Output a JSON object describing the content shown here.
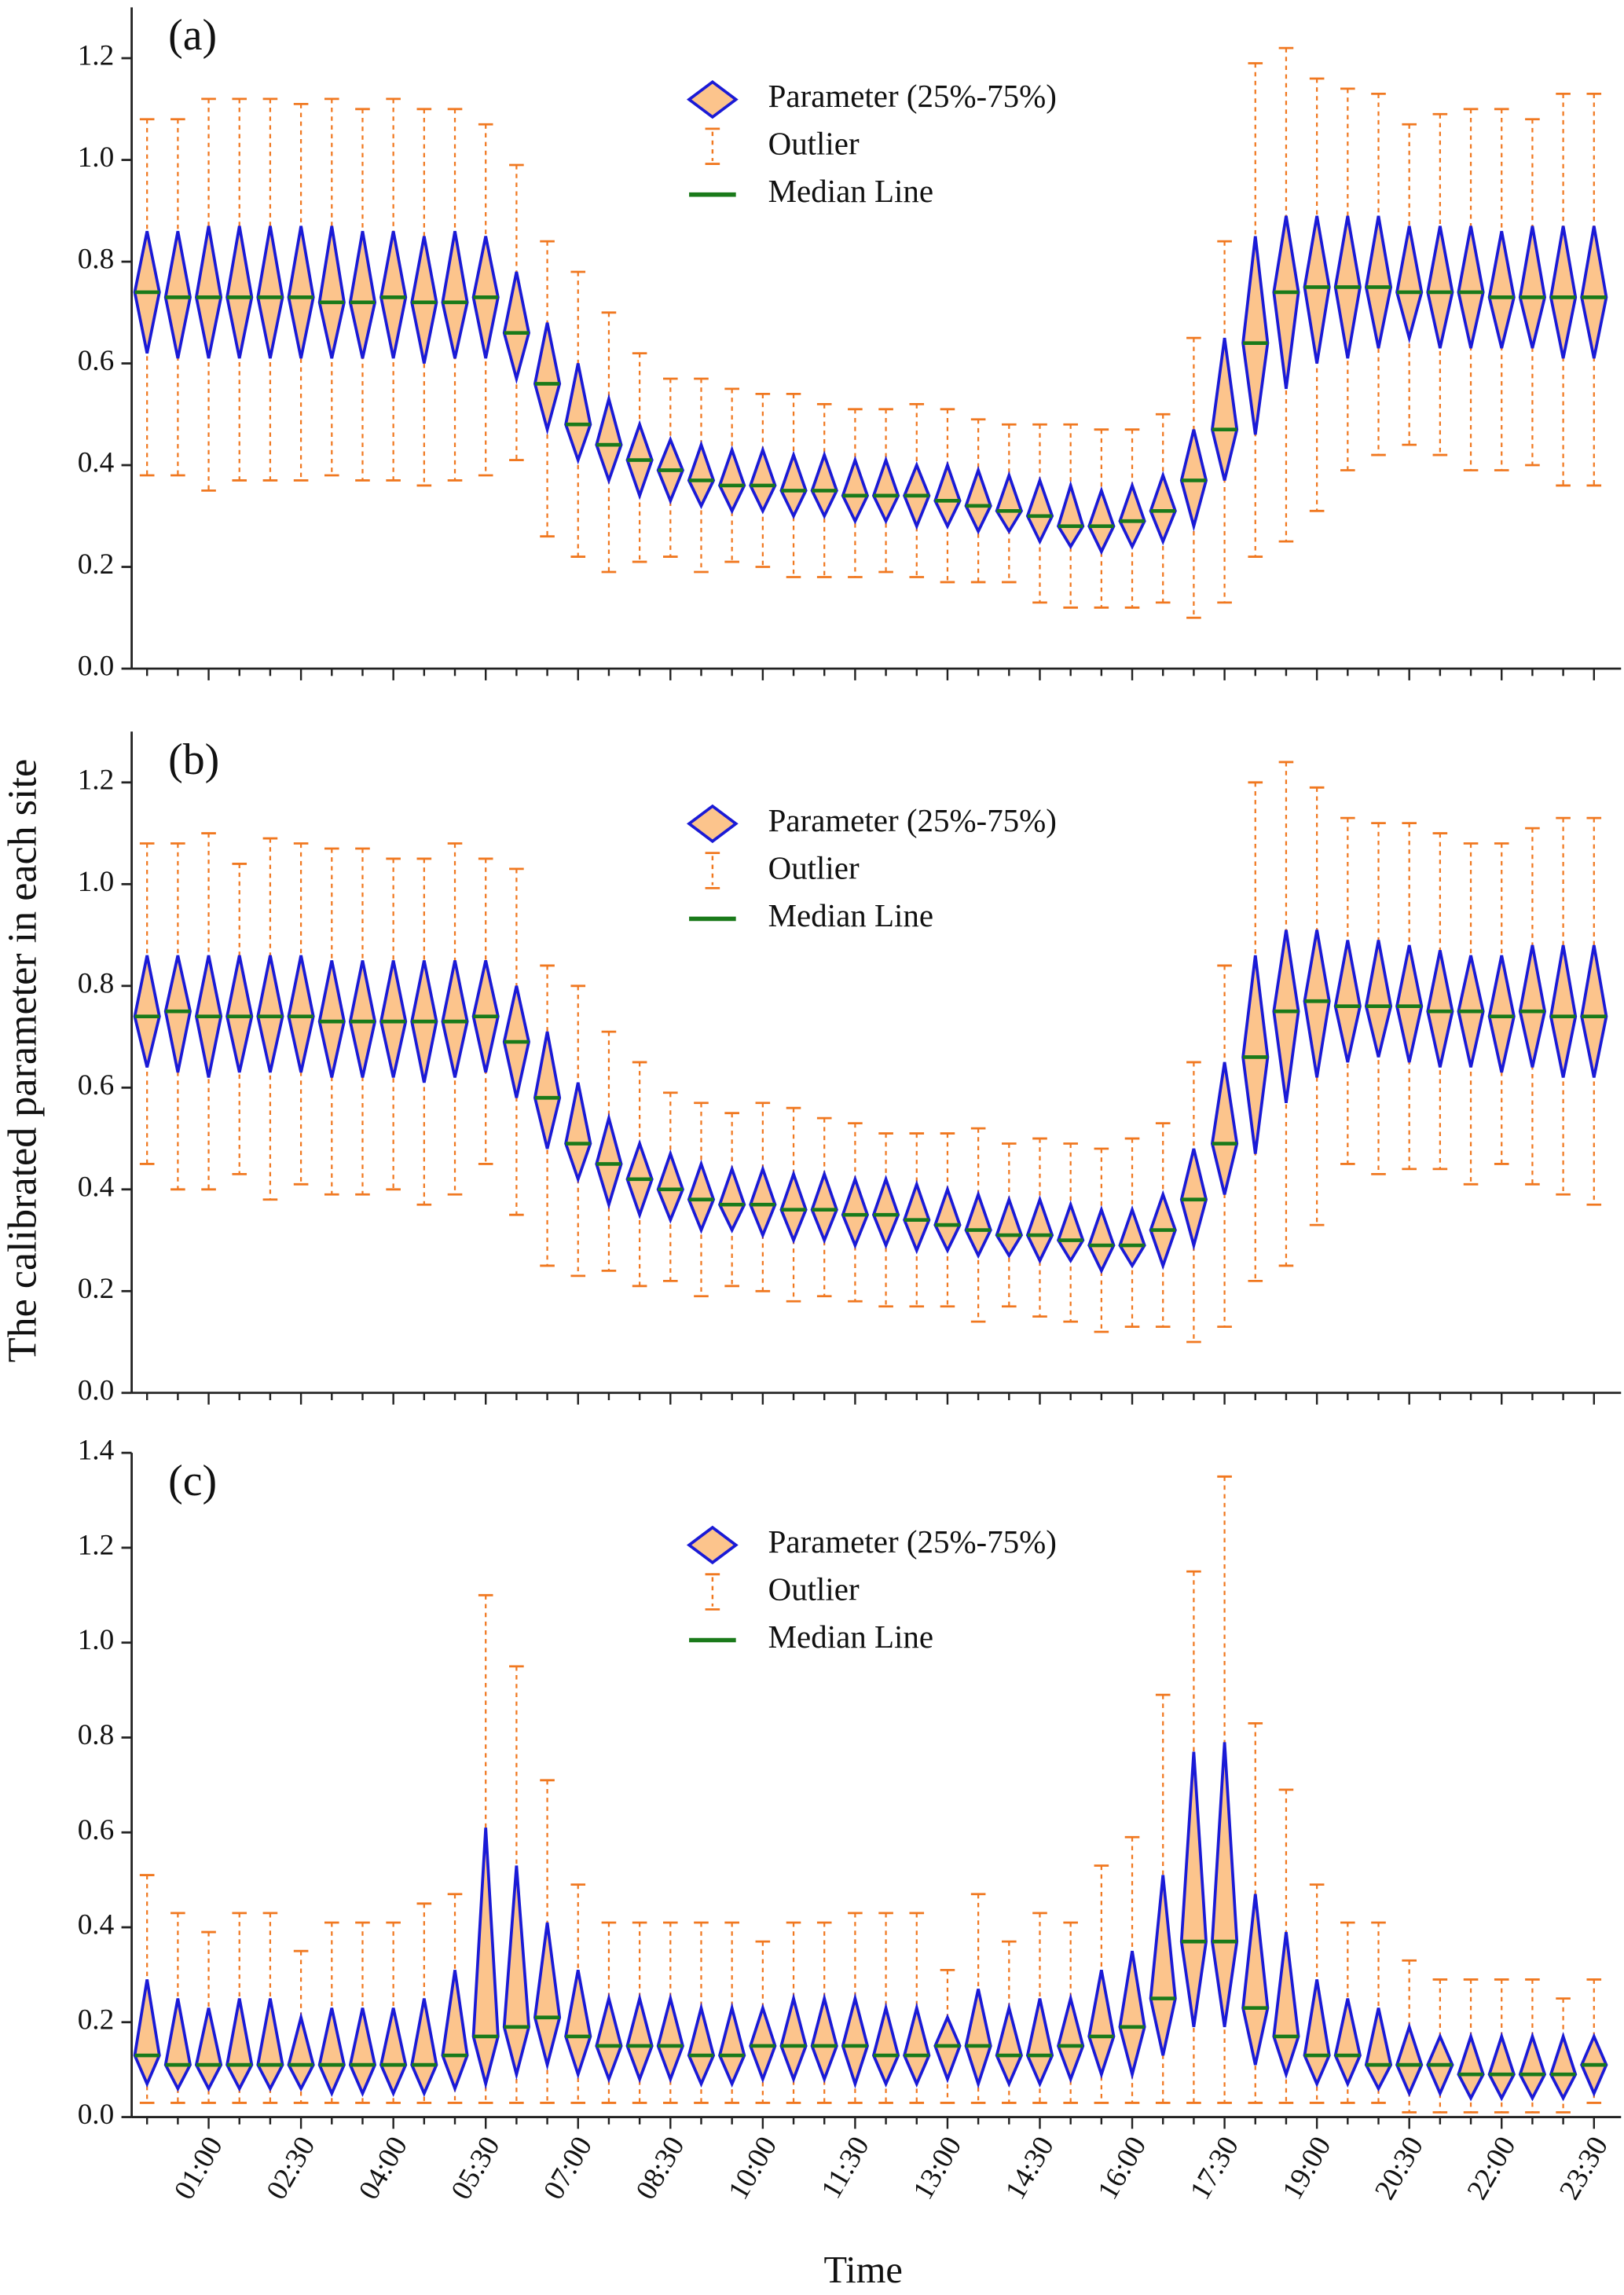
{
  "ylabel": "The calibrated parameter in each site",
  "xlabel": "Time",
  "chart_data": [
    {
      "type": "box",
      "panel": "(a)",
      "legend": [
        "Parameter (25%-75%)",
        "Outlier",
        "Median Line"
      ],
      "fill": "#fcc48c",
      "stroke": "#1a1ad6",
      "median_color": "#1a7a1a",
      "whisker_color": "#f07820",
      "ylim": [
        0,
        1.3
      ],
      "yticks": [
        {
          "value": 0,
          "label": "0.0"
        },
        0.2,
        0.4,
        0.6,
        0.8,
        {
          "value": 1,
          "label": "1.0"
        },
        1.2
      ],
      "whisker_high": [
        1.08,
        1.08,
        1.12,
        1.12,
        1.12,
        1.11,
        1.12,
        1.1,
        1.12,
        1.1,
        1.1,
        1.07,
        0.99,
        0.84,
        0.78,
        0.7,
        0.62,
        0.57,
        0.57,
        0.55,
        0.54,
        0.54,
        0.52,
        0.51,
        0.51,
        0.52,
        0.51,
        0.49,
        0.48,
        0.48,
        0.48,
        0.47,
        0.47,
        0.5,
        0.65,
        0.84,
        1.19,
        1.22,
        1.16,
        1.14,
        1.13,
        1.07,
        1.09,
        1.1,
        1.1,
        1.08,
        1.13,
        1.13
      ],
      "q3": [
        0.86,
        0.86,
        0.87,
        0.87,
        0.87,
        0.87,
        0.87,
        0.86,
        0.86,
        0.85,
        0.86,
        0.85,
        0.78,
        0.68,
        0.6,
        0.53,
        0.48,
        0.45,
        0.44,
        0.43,
        0.43,
        0.42,
        0.42,
        0.41,
        0.41,
        0.4,
        0.4,
        0.39,
        0.38,
        0.37,
        0.36,
        0.35,
        0.36,
        0.38,
        0.47,
        0.65,
        0.85,
        0.89,
        0.89,
        0.89,
        0.89,
        0.87,
        0.87,
        0.87,
        0.86,
        0.87,
        0.87,
        0.87
      ],
      "median": [
        0.74,
        0.73,
        0.73,
        0.73,
        0.73,
        0.73,
        0.72,
        0.72,
        0.73,
        0.72,
        0.72,
        0.73,
        0.66,
        0.56,
        0.48,
        0.44,
        0.41,
        0.39,
        0.37,
        0.36,
        0.36,
        0.35,
        0.35,
        0.34,
        0.34,
        0.34,
        0.33,
        0.32,
        0.31,
        0.3,
        0.28,
        0.28,
        0.29,
        0.31,
        0.37,
        0.47,
        0.64,
        0.74,
        0.75,
        0.75,
        0.75,
        0.74,
        0.74,
        0.74,
        0.73,
        0.73,
        0.73,
        0.73
      ],
      "q1": [
        0.62,
        0.61,
        0.61,
        0.61,
        0.61,
        0.61,
        0.61,
        0.61,
        0.61,
        0.6,
        0.61,
        0.61,
        0.57,
        0.47,
        0.41,
        0.37,
        0.34,
        0.33,
        0.32,
        0.31,
        0.31,
        0.3,
        0.3,
        0.29,
        0.29,
        0.28,
        0.28,
        0.27,
        0.27,
        0.25,
        0.24,
        0.23,
        0.24,
        0.25,
        0.28,
        0.37,
        0.46,
        0.55,
        0.6,
        0.61,
        0.63,
        0.65,
        0.63,
        0.63,
        0.63,
        0.63,
        0.61,
        0.61
      ],
      "whisker_low": [
        0.38,
        0.38,
        0.35,
        0.37,
        0.37,
        0.37,
        0.38,
        0.37,
        0.37,
        0.36,
        0.37,
        0.38,
        0.41,
        0.26,
        0.22,
        0.19,
        0.21,
        0.22,
        0.19,
        0.21,
        0.2,
        0.18,
        0.18,
        0.18,
        0.19,
        0.18,
        0.17,
        0.17,
        0.17,
        0.13,
        0.12,
        0.12,
        0.12,
        0.13,
        0.1,
        0.13,
        0.22,
        0.25,
        0.31,
        0.39,
        0.42,
        0.44,
        0.42,
        0.39,
        0.39,
        0.4,
        0.36,
        0.36
      ]
    },
    {
      "type": "box",
      "panel": "(b)",
      "legend": [
        "Parameter (25%-75%)",
        "Outlier",
        "Median Line"
      ],
      "fill": "#fcc48c",
      "stroke": "#1a1ad6",
      "median_color": "#1a7a1a",
      "whisker_color": "#f07820",
      "ylim": [
        0,
        1.3
      ],
      "yticks": [
        {
          "value": 0,
          "label": "0.0"
        },
        0.2,
        0.4,
        0.6,
        0.8,
        {
          "value": 1,
          "label": "1.0"
        },
        1.2
      ],
      "whisker_high": [
        1.08,
        1.08,
        1.1,
        1.04,
        1.09,
        1.08,
        1.07,
        1.07,
        1.05,
        1.05,
        1.08,
        1.05,
        1.03,
        0.84,
        0.8,
        0.71,
        0.65,
        0.59,
        0.57,
        0.55,
        0.57,
        0.56,
        0.54,
        0.53,
        0.51,
        0.51,
        0.51,
        0.52,
        0.49,
        0.5,
        0.49,
        0.48,
        0.5,
        0.53,
        0.65,
        0.84,
        1.2,
        1.24,
        1.19,
        1.13,
        1.12,
        1.12,
        1.1,
        1.08,
        1.08,
        1.11,
        1.13,
        1.13
      ],
      "q3": [
        0.86,
        0.86,
        0.86,
        0.86,
        0.86,
        0.86,
        0.85,
        0.85,
        0.85,
        0.85,
        0.85,
        0.85,
        0.8,
        0.71,
        0.61,
        0.54,
        0.49,
        0.47,
        0.45,
        0.44,
        0.44,
        0.43,
        0.43,
        0.42,
        0.42,
        0.41,
        0.4,
        0.39,
        0.38,
        0.38,
        0.37,
        0.36,
        0.36,
        0.39,
        0.48,
        0.65,
        0.86,
        0.91,
        0.91,
        0.89,
        0.89,
        0.88,
        0.87,
        0.86,
        0.86,
        0.88,
        0.88,
        0.88
      ],
      "median": [
        0.74,
        0.75,
        0.74,
        0.74,
        0.74,
        0.74,
        0.73,
        0.73,
        0.73,
        0.73,
        0.73,
        0.74,
        0.69,
        0.58,
        0.49,
        0.45,
        0.42,
        0.4,
        0.38,
        0.37,
        0.37,
        0.36,
        0.36,
        0.35,
        0.35,
        0.34,
        0.33,
        0.32,
        0.31,
        0.31,
        0.3,
        0.29,
        0.29,
        0.32,
        0.38,
        0.49,
        0.66,
        0.75,
        0.77,
        0.76,
        0.76,
        0.76,
        0.75,
        0.75,
        0.74,
        0.75,
        0.74,
        0.74
      ],
      "q1": [
        0.64,
        0.63,
        0.62,
        0.63,
        0.63,
        0.63,
        0.62,
        0.62,
        0.62,
        0.61,
        0.62,
        0.63,
        0.58,
        0.48,
        0.42,
        0.37,
        0.35,
        0.34,
        0.32,
        0.32,
        0.31,
        0.3,
        0.3,
        0.29,
        0.29,
        0.28,
        0.28,
        0.27,
        0.27,
        0.26,
        0.26,
        0.24,
        0.25,
        0.25,
        0.29,
        0.39,
        0.47,
        0.57,
        0.62,
        0.65,
        0.66,
        0.65,
        0.64,
        0.64,
        0.63,
        0.64,
        0.62,
        0.62
      ],
      "whisker_low": [
        0.45,
        0.4,
        0.4,
        0.43,
        0.38,
        0.41,
        0.39,
        0.39,
        0.4,
        0.37,
        0.39,
        0.45,
        0.35,
        0.25,
        0.23,
        0.24,
        0.21,
        0.22,
        0.19,
        0.21,
        0.2,
        0.18,
        0.19,
        0.18,
        0.17,
        0.17,
        0.17,
        0.14,
        0.17,
        0.15,
        0.14,
        0.12,
        0.13,
        0.13,
        0.1,
        0.13,
        0.22,
        0.25,
        0.33,
        0.45,
        0.43,
        0.44,
        0.44,
        0.41,
        0.45,
        0.41,
        0.39,
        0.37
      ]
    },
    {
      "type": "box",
      "panel": "(c)",
      "legend": [
        "Parameter (25%-75%)",
        "Outlier",
        "Median Line"
      ],
      "fill": "#fcc48c",
      "stroke": "#1a1ad6",
      "median_color": "#1a7a1a",
      "whisker_color": "#f07820",
      "categories": [
        null,
        null,
        "01:00",
        null,
        null,
        "02:30",
        null,
        null,
        "04:00",
        null,
        null,
        "05:30",
        null,
        null,
        "07:00",
        null,
        null,
        "08:30",
        null,
        null,
        "10:00",
        null,
        null,
        "11:30",
        null,
        null,
        "13:00",
        null,
        null,
        "14:30",
        null,
        null,
        "16:00",
        null,
        null,
        "17:30",
        null,
        null,
        "19:00",
        null,
        null,
        "20:30",
        null,
        null,
        "22:00",
        null,
        null,
        "23:30"
      ],
      "ylim": [
        0,
        1.4
      ],
      "yticks": [
        {
          "value": 0,
          "label": "0.0"
        },
        0.2,
        0.4,
        0.6,
        0.8,
        {
          "value": 1,
          "label": "1.0"
        },
        1.2,
        1.4
      ],
      "whisker_high": [
        0.51,
        0.43,
        0.39,
        0.43,
        0.43,
        0.35,
        0.41,
        0.41,
        0.41,
        0.45,
        0.47,
        1.1,
        0.95,
        0.71,
        0.49,
        0.41,
        0.41,
        0.41,
        0.41,
        0.41,
        0.37,
        0.41,
        0.41,
        0.43,
        0.43,
        0.43,
        0.31,
        0.47,
        0.37,
        0.43,
        0.41,
        0.53,
        0.59,
        0.89,
        1.15,
        1.35,
        0.83,
        0.69,
        0.49,
        0.41,
        0.41,
        0.33,
        0.29,
        0.29,
        0.29,
        0.29,
        0.25,
        0.29
      ],
      "q3": [
        0.29,
        0.25,
        0.23,
        0.25,
        0.25,
        0.21,
        0.23,
        0.23,
        0.23,
        0.25,
        0.31,
        0.61,
        0.53,
        0.41,
        0.31,
        0.25,
        0.25,
        0.25,
        0.23,
        0.23,
        0.23,
        0.25,
        0.25,
        0.25,
        0.23,
        0.23,
        0.21,
        0.27,
        0.23,
        0.25,
        0.25,
        0.31,
        0.35,
        0.51,
        0.77,
        0.79,
        0.47,
        0.39,
        0.29,
        0.25,
        0.23,
        0.19,
        0.17,
        0.17,
        0.17,
        0.17,
        0.17,
        0.17
      ],
      "median": [
        0.13,
        0.11,
        0.11,
        0.11,
        0.11,
        0.11,
        0.11,
        0.11,
        0.11,
        0.11,
        0.13,
        0.17,
        0.19,
        0.21,
        0.17,
        0.15,
        0.15,
        0.15,
        0.13,
        0.13,
        0.15,
        0.15,
        0.15,
        0.15,
        0.13,
        0.13,
        0.15,
        0.15,
        0.13,
        0.13,
        0.15,
        0.17,
        0.19,
        0.25,
        0.37,
        0.37,
        0.23,
        0.17,
        0.13,
        0.13,
        0.11,
        0.11,
        0.11,
        0.09,
        0.09,
        0.09,
        0.09,
        0.11
      ],
      "q1": [
        0.07,
        0.06,
        0.06,
        0.06,
        0.06,
        0.06,
        0.05,
        0.05,
        0.05,
        0.05,
        0.06,
        0.07,
        0.09,
        0.11,
        0.09,
        0.08,
        0.08,
        0.08,
        0.07,
        0.07,
        0.08,
        0.08,
        0.08,
        0.07,
        0.07,
        0.07,
        0.08,
        0.07,
        0.07,
        0.07,
        0.08,
        0.09,
        0.09,
        0.13,
        0.19,
        0.19,
        0.11,
        0.09,
        0.07,
        0.07,
        0.06,
        0.05,
        0.05,
        0.04,
        0.04,
        0.04,
        0.04,
        0.05
      ],
      "whisker_low": [
        0.03,
        0.03,
        0.03,
        0.03,
        0.03,
        0.03,
        0.03,
        0.03,
        0.03,
        0.03,
        0.03,
        0.03,
        0.03,
        0.03,
        0.03,
        0.03,
        0.03,
        0.03,
        0.03,
        0.03,
        0.03,
        0.03,
        0.03,
        0.03,
        0.03,
        0.03,
        0.03,
        0.03,
        0.03,
        0.03,
        0.03,
        0.03,
        0.03,
        0.03,
        0.03,
        0.03,
        0.03,
        0.03,
        0.03,
        0.03,
        0.03,
        0.01,
        0.01,
        0.01,
        0.01,
        0.01,
        0.01,
        0.03
      ]
    }
  ]
}
